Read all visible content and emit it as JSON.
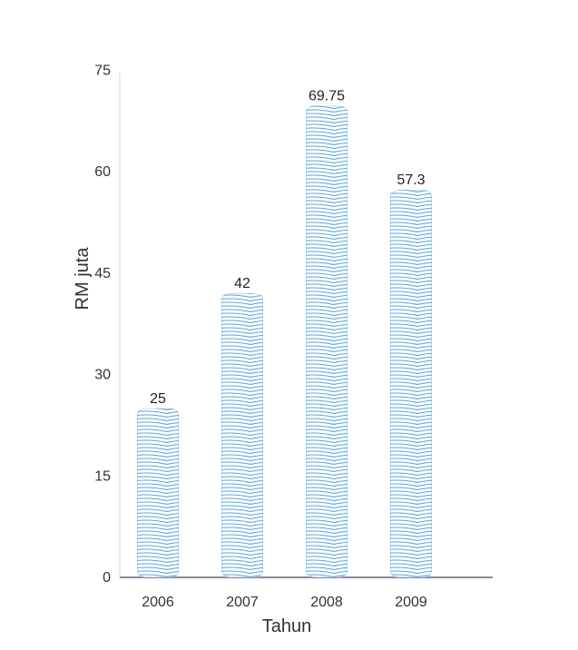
{
  "chart_data": {
    "type": "bar",
    "title": "",
    "xlabel": "Tahun",
    "ylabel": "RM juta",
    "categories": [
      "2006",
      "2007",
      "2008",
      "2009"
    ],
    "values": [
      25,
      42,
      69.75,
      57.3
    ],
    "value_labels": [
      "25",
      "42",
      "69.75",
      "57.3"
    ],
    "yticks": [
      0,
      15,
      30,
      45,
      60,
      75
    ],
    "ylim": [
      0,
      75
    ],
    "grid": false,
    "bar_color": "#5aa6dc"
  }
}
